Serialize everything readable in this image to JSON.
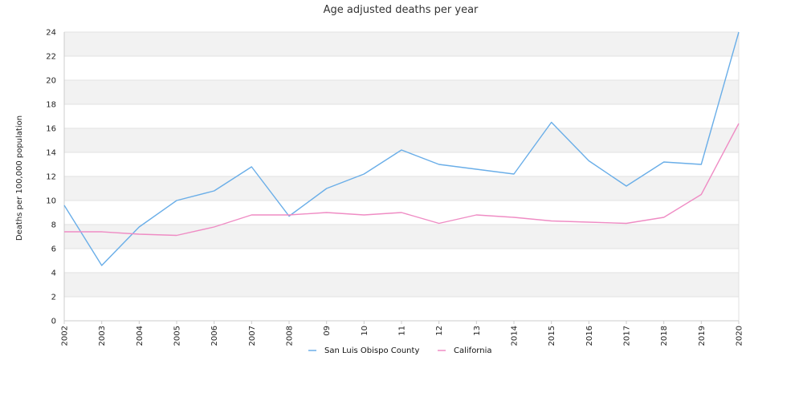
{
  "chart_data": {
    "type": "line",
    "title": "Age adjusted deaths per year",
    "xlabel": "",
    "ylabel": "Deaths per 100,000 population",
    "x": [
      "2002",
      "2003",
      "2004",
      "2005",
      "2006",
      "2007",
      "2008",
      "09",
      "10",
      "11",
      "12",
      "13",
      "2014",
      "2015",
      "2016",
      "2017",
      "2018",
      "2019",
      "2020"
    ],
    "ylim": [
      0,
      24
    ],
    "yticks": [
      0,
      2,
      4,
      6,
      8,
      10,
      12,
      14,
      16,
      18,
      20,
      22,
      24
    ],
    "grid": "horizontal alternating bands",
    "legend": "bottom-center",
    "series": [
      {
        "name": "San Luis Obispo County",
        "color": "#6aaee8",
        "values": [
          9.6,
          4.6,
          7.8,
          10.0,
          10.8,
          12.8,
          8.7,
          11.0,
          12.2,
          14.2,
          13.0,
          12.6,
          12.2,
          16.5,
          13.3,
          11.2,
          13.2,
          13.0,
          24.0
        ]
      },
      {
        "name": "California",
        "color": "#ef8cc4",
        "values": [
          7.4,
          7.4,
          7.2,
          7.1,
          7.8,
          8.8,
          8.8,
          9.0,
          8.8,
          9.0,
          8.1,
          8.8,
          8.6,
          8.3,
          8.2,
          8.1,
          8.6,
          10.5,
          16.4
        ]
      }
    ]
  }
}
